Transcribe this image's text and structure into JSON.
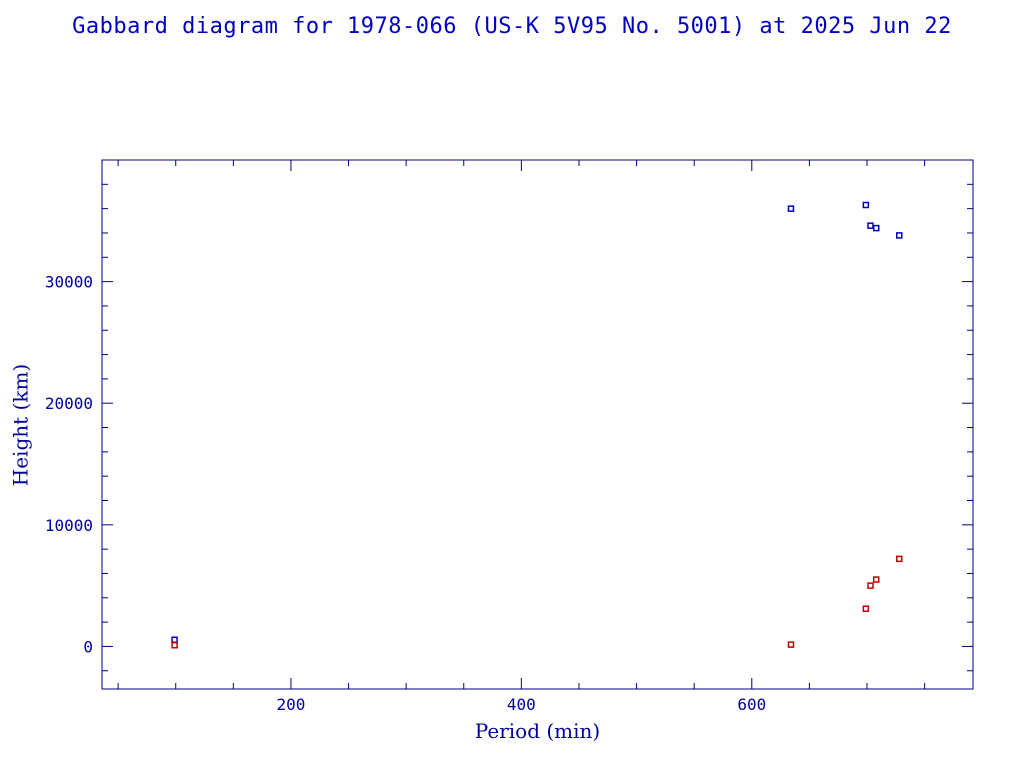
{
  "chart_data": {
    "type": "scatter",
    "title": "Gabbard diagram for 1978-066 (US-K 5V95 No. 5001) at 2025 Jun 22",
    "xlabel": "Period (min)",
    "ylabel": "Height (km)",
    "xlim": [
      36,
      792
    ],
    "ylim": [
      -3500,
      40000
    ],
    "x_ticks": [
      200,
      400,
      600
    ],
    "y_ticks": [
      0,
      10000,
      20000,
      30000
    ],
    "x_tick_labels": [
      "200",
      "400",
      "600"
    ],
    "y_tick_labels": [
      "0",
      "10000",
      "20000",
      "30000"
    ],
    "x_minor_step": 50,
    "y_minor_step": 2000,
    "grid": false,
    "series": [
      {
        "role": "apogee",
        "color": "#0000c0",
        "points": [
          {
            "x": 99,
            "y": 550
          },
          {
            "x": 634,
            "y": 36000
          },
          {
            "x": 699,
            "y": 36300
          },
          {
            "x": 703,
            "y": 34600
          },
          {
            "x": 708,
            "y": 34400
          },
          {
            "x": 728,
            "y": 33800
          }
        ]
      },
      {
        "role": "perigee",
        "color": "#c00000",
        "points": [
          {
            "x": 99,
            "y": 100
          },
          {
            "x": 634,
            "y": 150
          },
          {
            "x": 699,
            "y": 3100
          },
          {
            "x": 703,
            "y": 5000
          },
          {
            "x": 708,
            "y": 5500
          },
          {
            "x": 728,
            "y": 7200
          }
        ]
      }
    ]
  },
  "colors": {
    "axes": "#000080",
    "text": "#0000a0"
  }
}
